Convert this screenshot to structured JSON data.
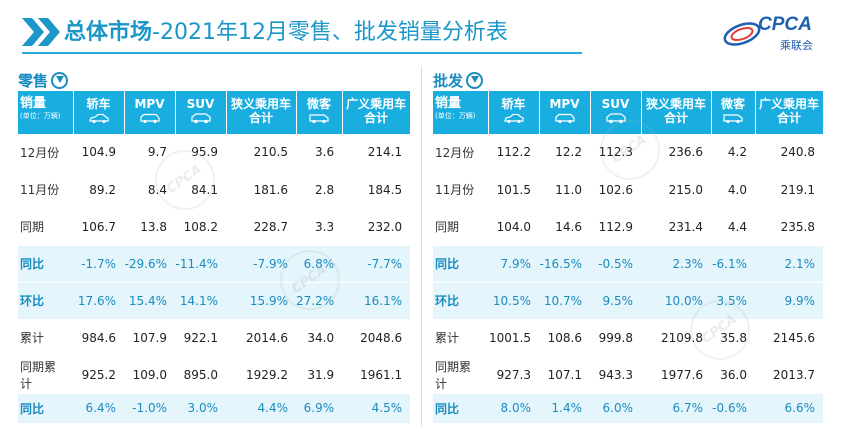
{
  "title": {
    "bold": "总体市场",
    "rest": "-2021年12月零售、批发销量分析表"
  },
  "logo": {
    "brand": "CPCA",
    "sub": "乘联会"
  },
  "columns": {
    "label": "销量",
    "unit": "(单位：万辆)",
    "cols": [
      {
        "label": "轿车",
        "icon": "sedan-icon"
      },
      {
        "label": "MPV",
        "icon": "mpv-icon"
      },
      {
        "label": "SUV",
        "icon": "suv-icon"
      },
      {
        "label": "狭义乘用车",
        "label2": "合计"
      },
      {
        "label": "微客",
        "icon": "minivan-icon"
      },
      {
        "label": "广义乘用车",
        "label2": "合计"
      }
    ]
  },
  "retail": {
    "label": "零售",
    "rows": [
      {
        "label": "12月份",
        "kind": "normal",
        "values": [
          "104.9",
          "9.7",
          "95.9",
          "210.5",
          "3.6",
          "214.1"
        ]
      },
      {
        "label": "11月份",
        "kind": "normal",
        "values": [
          "89.2",
          "8.4",
          "84.1",
          "181.6",
          "2.8",
          "184.5"
        ]
      },
      {
        "label": "同期",
        "kind": "normal",
        "values": [
          "106.7",
          "13.8",
          "108.2",
          "228.7",
          "3.3",
          "232.0"
        ]
      },
      {
        "label": "同比",
        "kind": "pct",
        "values": [
          "-1.7%",
          "-29.6%",
          "-11.4%",
          "-7.9%",
          "6.8%",
          "-7.7%"
        ]
      },
      {
        "label": "环比",
        "kind": "pct",
        "values": [
          "17.6%",
          "15.4%",
          "14.1%",
          "15.9%",
          "27.2%",
          "16.1%"
        ]
      },
      {
        "label": "累计",
        "kind": "normal",
        "values": [
          "984.6",
          "107.9",
          "922.1",
          "2014.6",
          "34.0",
          "2048.6"
        ]
      },
      {
        "label": "同期累计",
        "kind": "normal",
        "values": [
          "925.2",
          "109.0",
          "895.0",
          "1929.2",
          "31.9",
          "1961.1"
        ]
      },
      {
        "label": "同比",
        "kind": "pct",
        "values": [
          "6.4%",
          "-1.0%",
          "3.0%",
          "4.4%",
          "6.9%",
          "4.5%"
        ]
      }
    ]
  },
  "wholesale": {
    "label": "批发",
    "rows": [
      {
        "label": "12月份",
        "kind": "normal",
        "values": [
          "112.2",
          "12.2",
          "112.3",
          "236.6",
          "4.2",
          "240.8"
        ]
      },
      {
        "label": "11月份",
        "kind": "normal",
        "values": [
          "101.5",
          "11.0",
          "102.6",
          "215.0",
          "4.0",
          "219.1"
        ]
      },
      {
        "label": "同期",
        "kind": "normal",
        "values": [
          "104.0",
          "14.6",
          "112.9",
          "231.4",
          "4.4",
          "235.8"
        ]
      },
      {
        "label": "同比",
        "kind": "pct",
        "values": [
          "7.9%",
          "-16.5%",
          "-0.5%",
          "2.3%",
          "-6.1%",
          "2.1%"
        ]
      },
      {
        "label": "环比",
        "kind": "pct",
        "values": [
          "10.5%",
          "10.7%",
          "9.5%",
          "10.0%",
          "3.5%",
          "9.9%"
        ]
      },
      {
        "label": "累计",
        "kind": "normal",
        "values": [
          "1001.5",
          "108.6",
          "999.8",
          "2109.8",
          "35.8",
          "2145.6"
        ]
      },
      {
        "label": "同期累计",
        "kind": "normal",
        "values": [
          "927.3",
          "107.1",
          "943.3",
          "1977.6",
          "36.0",
          "2013.7"
        ]
      },
      {
        "label": "同比",
        "kind": "pct",
        "values": [
          "8.0%",
          "1.4%",
          "6.0%",
          "6.7%",
          "-0.6%",
          "6.6%"
        ]
      }
    ]
  },
  "colors": {
    "accent": "#1aaee0",
    "title": "#1a96c8",
    "pct_row_bg": "#e4f5fc"
  }
}
